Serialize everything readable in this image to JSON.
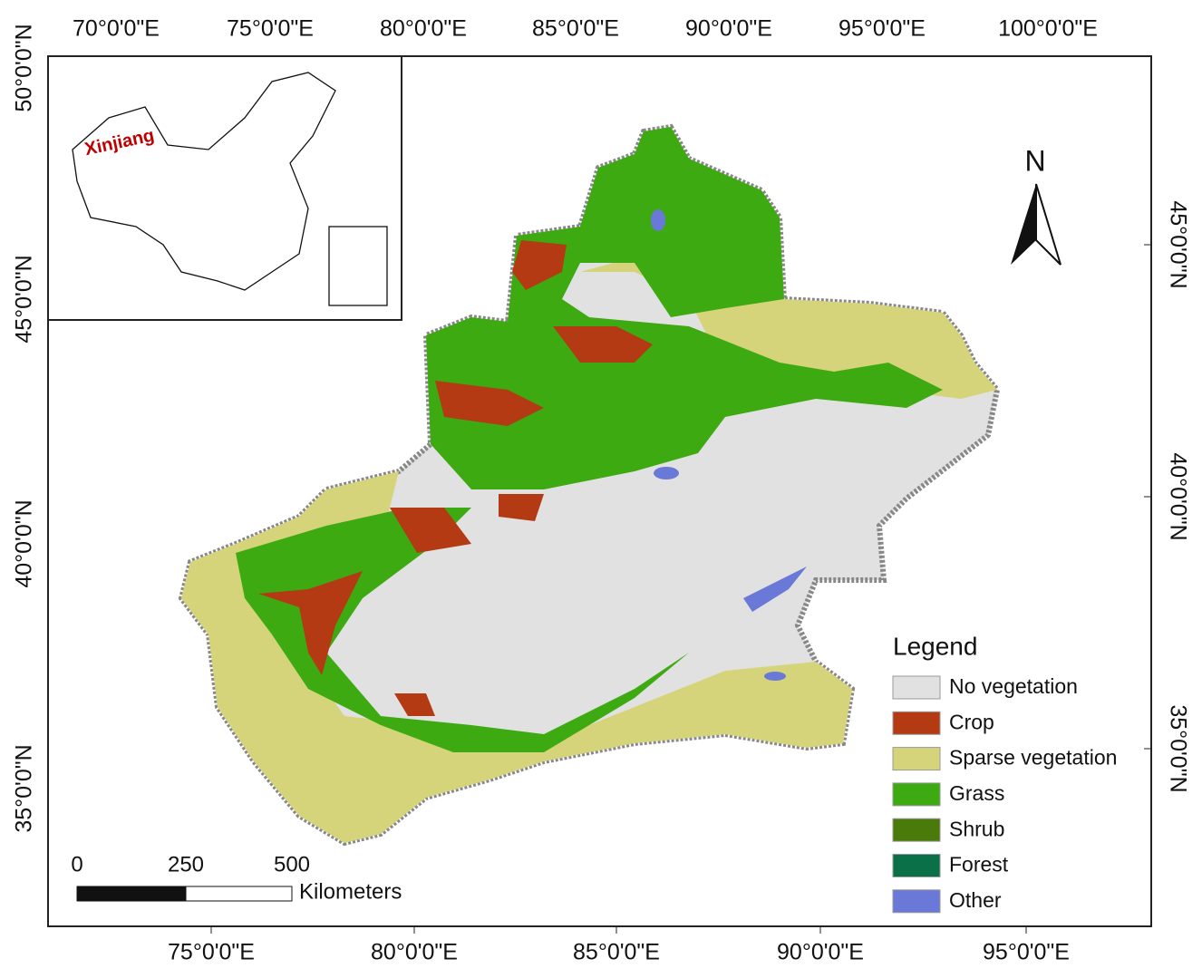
{
  "map": {
    "top_axis_labels": [
      "70°0'0\"E",
      "75°0'0\"E",
      "80°0'0\"E",
      "85°0'0\"E",
      "90°0'0\"E",
      "95°0'0\"E",
      "100°0'0\"E"
    ],
    "bottom_axis_labels": [
      "75°0'0\"E",
      "80°0'0\"E",
      "85°0'0\"E",
      "90°0'0\"E",
      "95°0'0\"E"
    ],
    "left_axis_labels": [
      "50°0'0\"N",
      "45°0'0\"N",
      "40°0'0\"N",
      "35°0'0\"N"
    ],
    "right_axis_labels": [
      "45°0'0\"N",
      "40°0'0\"N",
      "35°0'0\"N"
    ],
    "inset_label": "Xinjiang",
    "north_arrow": "N",
    "scale_bar": {
      "ticks": [
        "0",
        "250",
        "500"
      ],
      "unit": "Kilometers"
    },
    "legend": {
      "title": "Legend",
      "items": [
        {
          "label": "No vegetation",
          "color": "#e1e1e1"
        },
        {
          "label": "Crop",
          "color": "#b33a12"
        },
        {
          "label": "Sparse vegetation",
          "color": "#d6d47a"
        },
        {
          "label": "Grass",
          "color": "#3eaa12"
        },
        {
          "label": "Shrub",
          "color": "#4a7a0a"
        },
        {
          "label": "Forest",
          "color": "#0a7048"
        },
        {
          "label": "Other",
          "color": "#6a78d8"
        }
      ]
    }
  }
}
